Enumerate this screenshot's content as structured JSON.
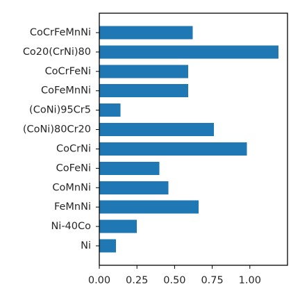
{
  "chart_data": {
    "type": "bar",
    "orientation": "horizontal",
    "categories": [
      "CoCrFeMnNi",
      "Co20(CrNi)80",
      "CoCrFeNi",
      "CoFeMnNi",
      "(CoNi)95Cr5",
      "(CoNi)80Cr20",
      "CoCrNi",
      "CoFeNi",
      "CoMnNi",
      "FeMnNi",
      "Ni-40Co",
      "Ni"
    ],
    "values": [
      0.62,
      1.19,
      0.59,
      0.59,
      0.14,
      0.76,
      0.98,
      0.4,
      0.46,
      0.66,
      0.25,
      0.11
    ],
    "xlim": [
      0,
      1.25
    ],
    "xticks": [
      "0.00",
      "0.25",
      "0.50",
      "0.75",
      "1.00"
    ],
    "title": "",
    "xlabel": "",
    "ylabel": "",
    "bar_color": "#1f77b4",
    "grid": false
  }
}
